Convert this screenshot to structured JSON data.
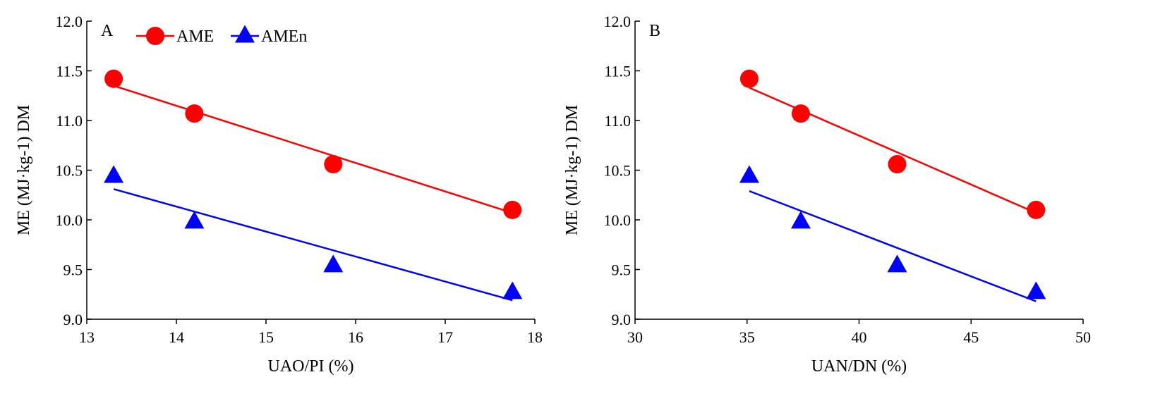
{
  "colors": {
    "AME": "#ff0000",
    "AMEn": "#0000ff",
    "axis": "#000000"
  },
  "legend": {
    "items": [
      {
        "label": "AME",
        "color": "#ff0000",
        "marker": "circle"
      },
      {
        "label": "AMEn",
        "color": "#0000ff",
        "marker": "triangle"
      }
    ]
  },
  "chart_data": [
    {
      "panel": "A",
      "type": "scatter",
      "xlabel": "UAO/PI (%)",
      "ylabel": "ME (MJ·kg-1) DM",
      "xlim": [
        13,
        18
      ],
      "ylim": [
        9.0,
        12.0
      ],
      "xticks": [
        "13",
        "14",
        "15",
        "16",
        "17",
        "18"
      ],
      "yticks": [
        "9.0",
        "9.5",
        "10.0",
        "10.5",
        "11.0",
        "11.5",
        "12.0"
      ],
      "legend": "top-left",
      "series": [
        {
          "name": "AME",
          "color": "#ff0000",
          "marker": "circle",
          "points": [
            [
              13.3,
              11.42
            ],
            [
              14.2,
              11.07
            ],
            [
              15.75,
              10.56
            ],
            [
              17.75,
              10.1
            ]
          ],
          "fit": [
            [
              13.3,
              11.35
            ],
            [
              17.75,
              10.07
            ]
          ]
        },
        {
          "name": "AMEn",
          "color": "#0000ff",
          "marker": "triangle",
          "points": [
            [
              13.3,
              10.44
            ],
            [
              14.2,
              9.98
            ],
            [
              15.75,
              9.54
            ],
            [
              17.75,
              9.27
            ]
          ],
          "fit": [
            [
              13.3,
              10.31
            ],
            [
              17.75,
              9.19
            ]
          ]
        }
      ]
    },
    {
      "panel": "B",
      "type": "scatter",
      "xlabel": "UAN/DN (%)",
      "ylabel": "ME (MJ·kg-1) DM",
      "xlim": [
        30,
        50
      ],
      "ylim": [
        9.0,
        12.0
      ],
      "xticks": [
        "30",
        "35",
        "40",
        "45",
        "50"
      ],
      "yticks": [
        "9.0",
        "9.5",
        "10.0",
        "10.5",
        "11.0",
        "11.5",
        "12.0"
      ],
      "series": [
        {
          "name": "AME",
          "color": "#ff0000",
          "marker": "circle",
          "points": [
            [
              35.1,
              11.42
            ],
            [
              37.4,
              11.07
            ],
            [
              41.7,
              10.56
            ],
            [
              47.9,
              10.1
            ]
          ],
          "fit": [
            [
              35.1,
              11.33
            ],
            [
              47.9,
              10.07
            ]
          ]
        },
        {
          "name": "AMEn",
          "color": "#0000ff",
          "marker": "triangle",
          "points": [
            [
              35.1,
              10.44
            ],
            [
              37.4,
              9.98
            ],
            [
              41.7,
              9.54
            ],
            [
              47.9,
              9.27
            ]
          ],
          "fit": [
            [
              35.1,
              10.29
            ],
            [
              47.9,
              9.18
            ]
          ]
        }
      ]
    }
  ]
}
